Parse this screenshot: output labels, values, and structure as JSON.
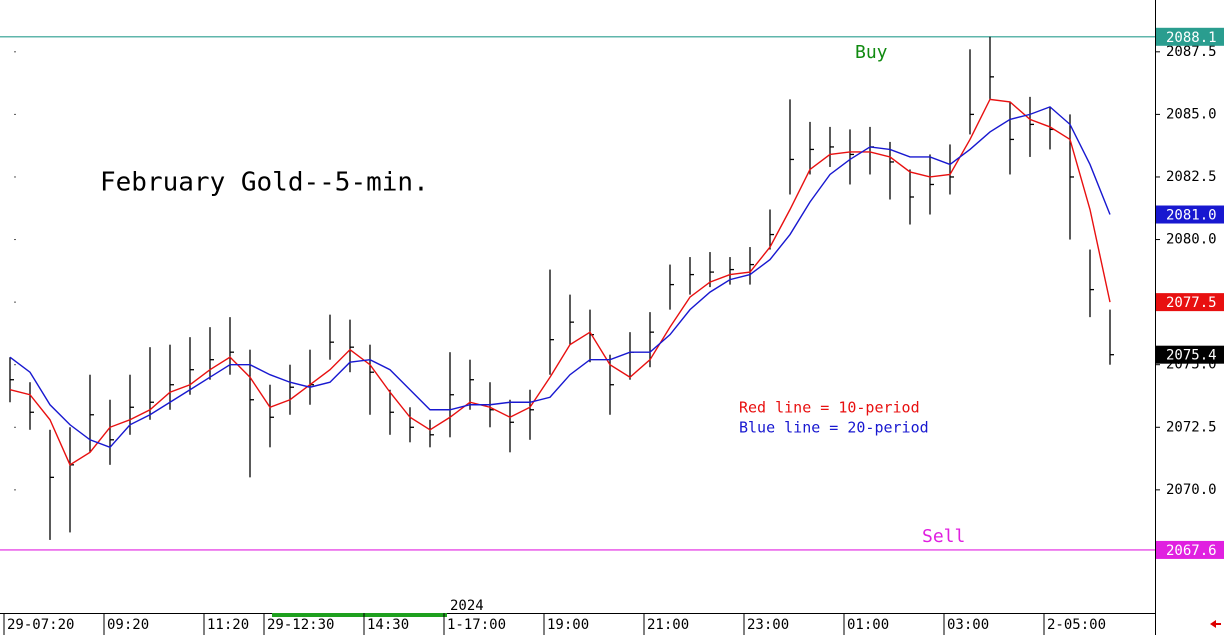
{
  "chart_data": {
    "type": "ohlc",
    "title": "February Gold--5-min.",
    "annotations": {
      "buy": "Buy",
      "sell": "Sell",
      "red_note": "Red line = 10-period",
      "blue_note": "Blue line = 20-period",
      "year": "2024"
    },
    "categories": [
      "29-07:20",
      null,
      null,
      null,
      null,
      "09:20",
      null,
      null,
      null,
      null,
      "11:20",
      null,
      null,
      "29-12:30",
      null,
      null,
      null,
      null,
      "14:30",
      null,
      null,
      null,
      "1-17:00",
      null,
      null,
      null,
      null,
      "19:00",
      null,
      null,
      null,
      null,
      "21:00",
      null,
      null,
      null,
      null,
      "23:00",
      null,
      null,
      null,
      null,
      "01:00",
      null,
      null,
      null,
      null,
      "03:00",
      null,
      null,
      null,
      null,
      "2-05:00",
      null,
      null,
      null
    ],
    "high": [
      2075.3,
      2074.3,
      2072.4,
      2072.5,
      2074.6,
      2073.6,
      2074.6,
      2075.7,
      2075.8,
      2076.1,
      2076.5,
      2076.9,
      2075.6,
      2074.2,
      2075.0,
      2075.6,
      2077.0,
      2076.8,
      2075.8,
      2074.0,
      2073.3,
      2072.8,
      2075.5,
      2075.2,
      2074.3,
      2073.6,
      2074.0,
      2078.8,
      2077.8,
      2077.2,
      2075.4,
      2076.3,
      2077.1,
      2079.0,
      2079.3,
      2079.5,
      2079.3,
      2079.7,
      2081.2,
      2085.6,
      2084.7,
      2084.5,
      2084.4,
      2084.5,
      2083.9,
      2082.8,
      2083.4,
      2083.8,
      2087.6,
      2088.1,
      2085.5,
      2085.7,
      2085.3,
      2085.0,
      2079.6,
      2077.2
    ],
    "low": [
      2073.5,
      2072.4,
      2068.0,
      2068.3,
      2071.5,
      2071.0,
      2072.2,
      2072.8,
      2073.2,
      2073.8,
      2074.4,
      2074.6,
      2070.5,
      2071.7,
      2073.0,
      2073.4,
      2075.2,
      2074.7,
      2073.0,
      2072.2,
      2071.9,
      2071.7,
      2072.1,
      2073.2,
      2072.5,
      2071.5,
      2072.0,
      2074.6,
      2075.8,
      2075.1,
      2073.0,
      2074.4,
      2074.9,
      2077.2,
      2077.8,
      2078.1,
      2078.2,
      2078.2,
      2079.6,
      2081.8,
      2082.6,
      2082.9,
      2082.2,
      2082.6,
      2081.6,
      2080.6,
      2081.0,
      2081.8,
      2084.2,
      2085.6,
      2082.6,
      2083.3,
      2083.6,
      2080.0,
      2076.9,
      2075.0
    ],
    "close": [
      2074.4,
      2073.1,
      2070.5,
      2071,
      2073,
      2072,
      2073.3,
      2073.5,
      2074.2,
      2074.8,
      2075.2,
      2075.5,
      2073.6,
      2072.9,
      2074.1,
      2074.2,
      2075.9,
      2075.7,
      2074.7,
      2073.1,
      2072.5,
      2072.2,
      2073.8,
      2074.4,
      2073.2,
      2072.7,
      2073.2,
      2076,
      2076.7,
      2076.2,
      2074.2,
      2075.5,
      2076.3,
      2078.2,
      2078.6,
      2078.7,
      2078.8,
      2079,
      2080.2,
      2083.2,
      2083.6,
      2083.7,
      2083.4,
      2083.7,
      2083.1,
      2081.7,
      2082.2,
      2082.5,
      2085,
      2086.5,
      2084,
      2084.6,
      2084.4,
      2082.5,
      2078,
      2075.4
    ],
    "series": [
      {
        "color": "#e81010",
        "values": [
          2074.0,
          2073.8,
          2072.8,
          2071.0,
          2071.5,
          2072.5,
          2072.8,
          2073.2,
          2073.9,
          2074.2,
          2074.8,
          2075.3,
          2074.5,
          2073.3,
          2073.6,
          2074.2,
          2074.8,
          2075.6,
          2075.0,
          2073.9,
          2072.9,
          2072.4,
          2072.9,
          2073.5,
          2073.3,
          2072.9,
          2073.3,
          2074.5,
          2075.8,
          2076.3,
          2075.0,
          2074.5,
          2075.2,
          2076.5,
          2077.7,
          2078.3,
          2078.6,
          2078.7,
          2079.7,
          2081.2,
          2082.8,
          2083.4,
          2083.5,
          2083.5,
          2083.3,
          2082.7,
          2082.5,
          2082.6,
          2084.0,
          2085.6,
          2085.5,
          2084.8,
          2084.5,
          2084.0,
          2081.2,
          2077.5
        ]
      },
      {
        "color": "#1818d0",
        "values": [
          2075.3,
          2074.7,
          2073.4,
          2072.6,
          2072.0,
          2071.7,
          2072.6,
          2073.0,
          2073.5,
          2074.0,
          2074.5,
          2075.0,
          2075.0,
          2074.6,
          2074.3,
          2074.1,
          2074.3,
          2075.1,
          2075.2,
          2074.8,
          2074.0,
          2073.2,
          2073.2,
          2073.4,
          2073.4,
          2073.5,
          2073.5,
          2073.7,
          2074.6,
          2075.2,
          2075.2,
          2075.5,
          2075.5,
          2076.2,
          2077.2,
          2077.9,
          2078.4,
          2078.6,
          2079.2,
          2080.2,
          2081.5,
          2082.6,
          2083.2,
          2083.7,
          2083.6,
          2083.3,
          2083.3,
          2083.0,
          2083.6,
          2084.3,
          2084.8,
          2085.0,
          2085.3,
          2084.6,
          2083.0,
          2081.0
        ]
      }
    ],
    "price_tags": [
      {
        "value": 2088.1,
        "color": "#2a9d8f",
        "line": true
      },
      {
        "value": 2081,
        "label": "2081.0",
        "color": "#1818d0",
        "line": false
      },
      {
        "value": 2077.5,
        "color": "#e81010",
        "line": false
      },
      {
        "value": 2075.4,
        "color": "#000000",
        "line": false
      },
      {
        "value": 2067.6,
        "color": "#e020e0",
        "line": true
      }
    ],
    "ylim": [
      2065.4,
      2089.57
    ],
    "yticks": [
      {
        "value": 2070,
        "label": "2070.0"
      },
      2072.5,
      {
        "value": 2075,
        "label": "2075.0"
      },
      2077.5,
      {
        "value": 2080,
        "label": "2080.0"
      },
      2082.5,
      {
        "value": 2085,
        "label": "2085.0"
      },
      2087.5
    ]
  }
}
